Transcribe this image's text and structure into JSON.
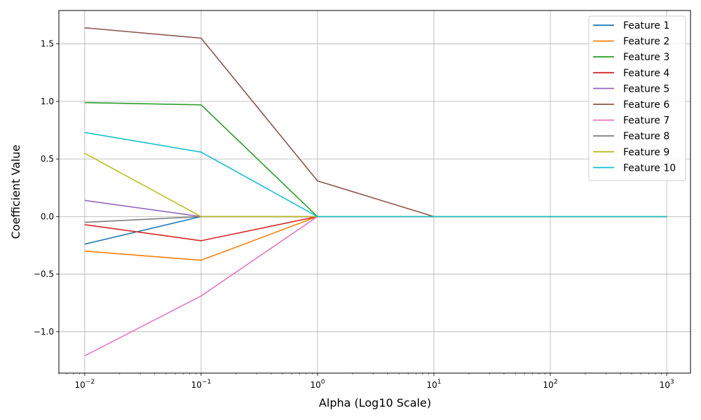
{
  "chart_data": {
    "type": "line",
    "title": "",
    "xlabel": "Alpha (Log10 Scale)",
    "ylabel": "Coefficient Value",
    "xscale": "log",
    "xlim": [
      0.006,
      1600
    ],
    "ylim": [
      -1.36,
      1.79
    ],
    "x_ticks": [
      0.01,
      0.1,
      1,
      10,
      100,
      1000
    ],
    "x_tick_labels": [
      {
        "base": "10",
        "exp": "−2"
      },
      {
        "base": "10",
        "exp": "−1"
      },
      {
        "base": "10",
        "exp": "0"
      },
      {
        "base": "10",
        "exp": "1"
      },
      {
        "base": "10",
        "exp": "2"
      },
      {
        "base": "10",
        "exp": "3"
      }
    ],
    "y_ticks": [
      -1.0,
      -0.5,
      0.0,
      0.5,
      1.0,
      1.5
    ],
    "y_tick_labels": [
      "−1.0",
      "−0.5",
      "0.0",
      "0.5",
      "1.0",
      "1.5"
    ],
    "grid": true,
    "legend_position": "top-right",
    "x": [
      0.01,
      0.1,
      1,
      10,
      100,
      1000
    ],
    "series": [
      {
        "name": "Feature 1",
        "color": "#1f77b4",
        "values": [
          -0.24,
          0.0,
          0.0,
          0.0,
          0.0,
          0.0
        ]
      },
      {
        "name": "Feature 2",
        "color": "#ff7f0e",
        "values": [
          -0.3,
          -0.38,
          0.0,
          0.0,
          0.0,
          0.0
        ]
      },
      {
        "name": "Feature 3",
        "color": "#2ca02c",
        "values": [
          0.99,
          0.97,
          0.0,
          0.0,
          0.0,
          0.0
        ]
      },
      {
        "name": "Feature 4",
        "color": "#d62728",
        "values": [
          -0.07,
          -0.21,
          0.0,
          0.0,
          0.0,
          0.0
        ]
      },
      {
        "name": "Feature 5",
        "color": "#9467bd",
        "values": [
          0.14,
          0.0,
          0.0,
          0.0,
          0.0,
          0.0
        ]
      },
      {
        "name": "Feature 6",
        "color": "#8c564b",
        "values": [
          1.64,
          1.55,
          0.31,
          0.0,
          0.0,
          0.0
        ]
      },
      {
        "name": "Feature 7",
        "color": "#e377c2",
        "values": [
          -1.21,
          -0.69,
          0.0,
          0.0,
          0.0,
          0.0
        ]
      },
      {
        "name": "Feature 8",
        "color": "#7f7f7f",
        "values": [
          -0.05,
          0.0,
          0.0,
          0.0,
          0.0,
          0.0
        ]
      },
      {
        "name": "Feature 9",
        "color": "#bcbd22",
        "values": [
          0.55,
          0.0,
          0.0,
          0.0,
          0.0,
          0.0
        ]
      },
      {
        "name": "Feature 10",
        "color": "#17becf",
        "values": [
          0.73,
          0.56,
          0.0,
          0.0,
          0.0,
          0.0
        ]
      }
    ]
  }
}
